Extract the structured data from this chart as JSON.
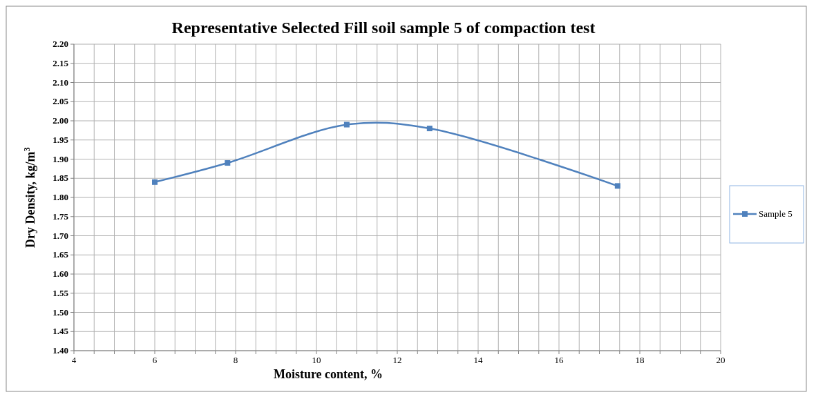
{
  "chart_data": {
    "type": "line",
    "title": "Representative Selected Fill soil sample 5 of compaction test",
    "xlabel": "Moisture content, %",
    "ylabel": "Dry Density, kg/m$^{3}$",
    "x": [
      6,
      7.8,
      10.75,
      12.8,
      17.45
    ],
    "series": [
      {
        "name": "Sample 5",
        "color": "#4f81bd",
        "values": [
          1.84,
          1.89,
          1.99,
          1.98,
          1.83
        ]
      }
    ],
    "xlim": [
      4,
      20
    ],
    "xticks": [
      4,
      {
        "value": 4.5,
        "label": null
      },
      {
        "value": 5,
        "label": null
      },
      {
        "value": 5.5,
        "label": null
      },
      6,
      {
        "value": 6.5,
        "label": null
      },
      {
        "value": 7,
        "label": null
      },
      {
        "value": 7.5,
        "label": null
      },
      8,
      {
        "value": 8.5,
        "label": null
      },
      {
        "value": 9,
        "label": null
      },
      {
        "value": 9.5,
        "label": null
      },
      10,
      {
        "value": 10.5,
        "label": null
      },
      {
        "value": 11,
        "label": null
      },
      {
        "value": 11.5,
        "label": null
      },
      12,
      {
        "value": 12.5,
        "label": null
      },
      {
        "value": 13,
        "label": null
      },
      {
        "value": 13.5,
        "label": null
      },
      14,
      {
        "value": 14.5,
        "label": null
      },
      {
        "value": 15,
        "label": null
      },
      {
        "value": 15.5,
        "label": null
      },
      16,
      {
        "value": 16.5,
        "label": null
      },
      {
        "value": 17,
        "label": null
      },
      {
        "value": 17.5,
        "label": null
      },
      18,
      {
        "value": 18.5,
        "label": null
      },
      {
        "value": 19,
        "label": null
      },
      {
        "value": 19.5,
        "label": null
      },
      20
    ],
    "ylim": [
      1.4,
      2.2
    ],
    "yticks": [
      {
        "value": 1.4,
        "label": "1.40"
      },
      {
        "value": 1.45,
        "label": "1.45"
      },
      {
        "value": 1.5,
        "label": "1.50"
      },
      {
        "value": 1.55,
        "label": "1.55"
      },
      {
        "value": 1.6,
        "label": "1.60"
      },
      {
        "value": 1.65,
        "label": "1.65"
      },
      {
        "value": 1.7,
        "label": "1.70"
      },
      {
        "value": 1.75,
        "label": "1.75"
      },
      {
        "value": 1.8,
        "label": "1.80"
      },
      {
        "value": 1.85,
        "label": "1.85"
      },
      {
        "value": 1.9,
        "label": "1.90"
      },
      {
        "value": 1.95,
        "label": "1.95"
      },
      {
        "value": 2.0,
        "label": "2.00"
      },
      {
        "value": 2.05,
        "label": "2.05"
      },
      {
        "value": 2.1,
        "label": "2.10"
      },
      {
        "value": 2.15,
        "label": "2.15"
      },
      {
        "value": 2.2,
        "label": "2.20"
      }
    ],
    "grid": true,
    "legend": "right",
    "marker": "square",
    "line_style": "solid"
  }
}
